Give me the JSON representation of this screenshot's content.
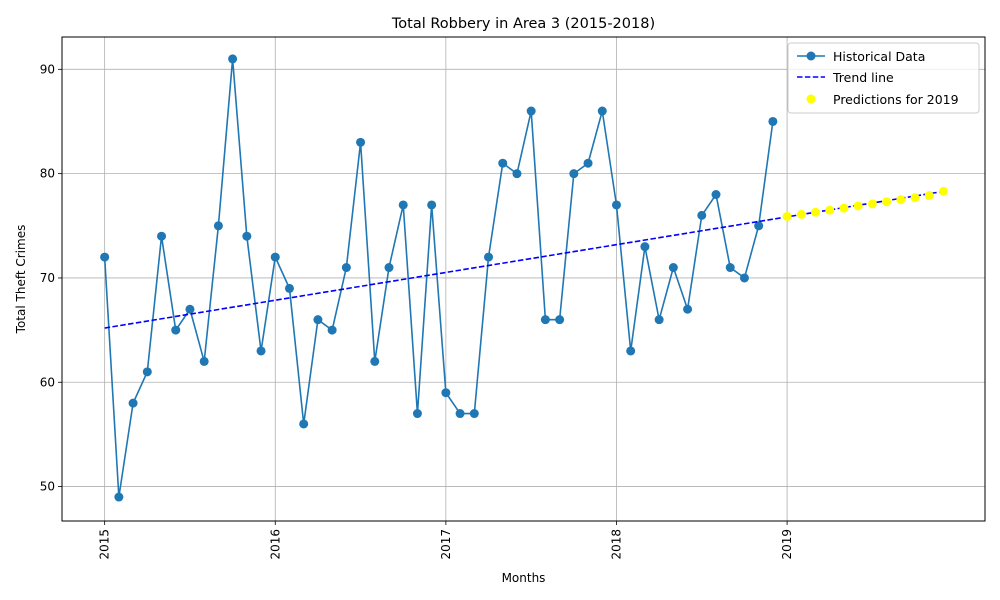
{
  "chart_data": {
    "type": "line",
    "title": "Total Robbery in Area 3 (2015-2018)",
    "xlabel": "Months",
    "ylabel": "Total Theft Crimes",
    "xlim": [
      2014.75,
      2020.16
    ],
    "ylim": [
      46.7,
      93.1
    ],
    "x_ticks": [
      "2015",
      "2016",
      "2017",
      "2018",
      "2019"
    ],
    "y_ticks": [
      50,
      60,
      70,
      80,
      90
    ],
    "grid": true,
    "legend_position": "top-right",
    "series": [
      {
        "name": "Historical Data",
        "color": "#1f77b4",
        "style": "line-with-markers",
        "x_start": 2015,
        "x_step_months": 1,
        "values": [
          72,
          49,
          58,
          61,
          74,
          65,
          67,
          62,
          75,
          91,
          74,
          63,
          72,
          69,
          56,
          66,
          65,
          71,
          83,
          62,
          71,
          77,
          57,
          77,
          59,
          57,
          57,
          72,
          81,
          80,
          86,
          66,
          66,
          80,
          81,
          86,
          77,
          63,
          73,
          66,
          71,
          67,
          76,
          78,
          71,
          70,
          75,
          85
        ]
      },
      {
        "name": "Trend line",
        "color": "#0000ff",
        "style": "dashed",
        "x": [
          2015,
          2019.917
        ],
        "values": [
          65.2,
          78.3
        ]
      },
      {
        "name": "Predictions for 2019",
        "color": "#ffff00",
        "style": "scatter",
        "x_start": 2019,
        "x_step_months": 1,
        "values": [
          75.9,
          76.1,
          76.3,
          76.5,
          76.7,
          76.9,
          77.1,
          77.3,
          77.5,
          77.7,
          77.9,
          78.3
        ]
      }
    ]
  }
}
